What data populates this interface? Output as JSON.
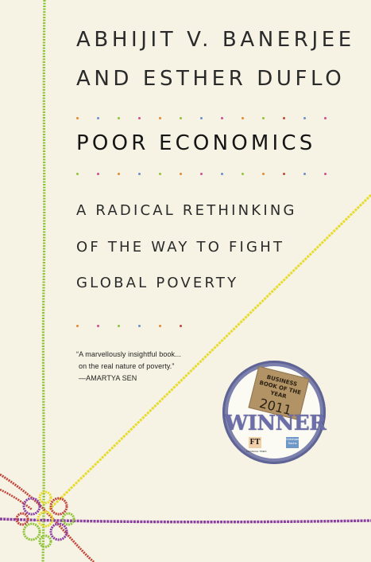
{
  "book": {
    "author_line1": "ABHIJIT V. BANERJEE",
    "author_line2": "AND ESTHER DUFLO",
    "title": "POOR ECONOMICS",
    "subtitle_line1": "A RADICAL RETHINKING",
    "subtitle_line2": "OF THE WAY TO FIGHT",
    "subtitle_line3": "GLOBAL POVERTY"
  },
  "blurb": {
    "line1": "“A marvellously insightful book...",
    "line2": "on the real nature of poverty.”",
    "attribution": "—AMARTYA SEN"
  },
  "award": {
    "line1": "BUSINESS",
    "line2": "BOOK OF THE YEAR",
    "year": "2011",
    "label": "WINNER",
    "ft_logo": "FT",
    "ft_label": "FINANCIAL TIMES",
    "gs_logo": "Goldman Sachs"
  },
  "colors": {
    "background": "#f6f2e4",
    "green_string": "#8fc43a",
    "yellow_string": "#e7dc2c",
    "purple_string": "#8a3fa0",
    "red_string": "#c0453a",
    "award_ring": "#7b80ad"
  }
}
